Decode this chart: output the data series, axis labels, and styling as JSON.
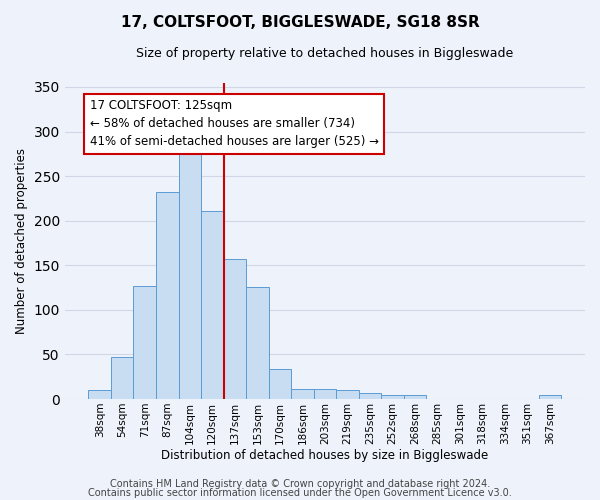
{
  "title": "17, COLTSFOOT, BIGGLESWADE, SG18 8SR",
  "subtitle": "Size of property relative to detached houses in Biggleswade",
  "xlabel": "Distribution of detached houses by size in Biggleswade",
  "ylabel": "Number of detached properties",
  "bar_labels": [
    "38sqm",
    "54sqm",
    "71sqm",
    "87sqm",
    "104sqm",
    "120sqm",
    "137sqm",
    "153sqm",
    "170sqm",
    "186sqm",
    "203sqm",
    "219sqm",
    "235sqm",
    "252sqm",
    "268sqm",
    "285sqm",
    "301sqm",
    "318sqm",
    "334sqm",
    "351sqm",
    "367sqm"
  ],
  "bar_values": [
    10,
    47,
    127,
    232,
    283,
    211,
    157,
    126,
    34,
    11,
    11,
    10,
    7,
    5,
    5,
    0,
    0,
    0,
    0,
    0,
    4
  ],
  "bar_color": "#c9ddf2",
  "bar_edge_color": "#5b9bd5",
  "vline_x": 5.5,
  "vline_color": "#cc0000",
  "ylim": [
    0,
    355
  ],
  "annotation_box_text": "17 COLTSFOOT: 125sqm\n← 58% of detached houses are smaller (734)\n41% of semi-detached houses are larger (525) →",
  "footer_line1": "Contains HM Land Registry data © Crown copyright and database right 2024.",
  "footer_line2": "Contains public sector information licensed under the Open Government Licence v3.0.",
  "bg_color": "#eef3fb",
  "plot_bg_color": "#eef3fb",
  "grid_color": "#d0d8e8",
  "title_fontsize": 11,
  "subtitle_fontsize": 9,
  "axis_label_fontsize": 8.5,
  "tick_fontsize": 7.5,
  "footer_fontsize": 7,
  "annotation_fontsize": 8.5
}
